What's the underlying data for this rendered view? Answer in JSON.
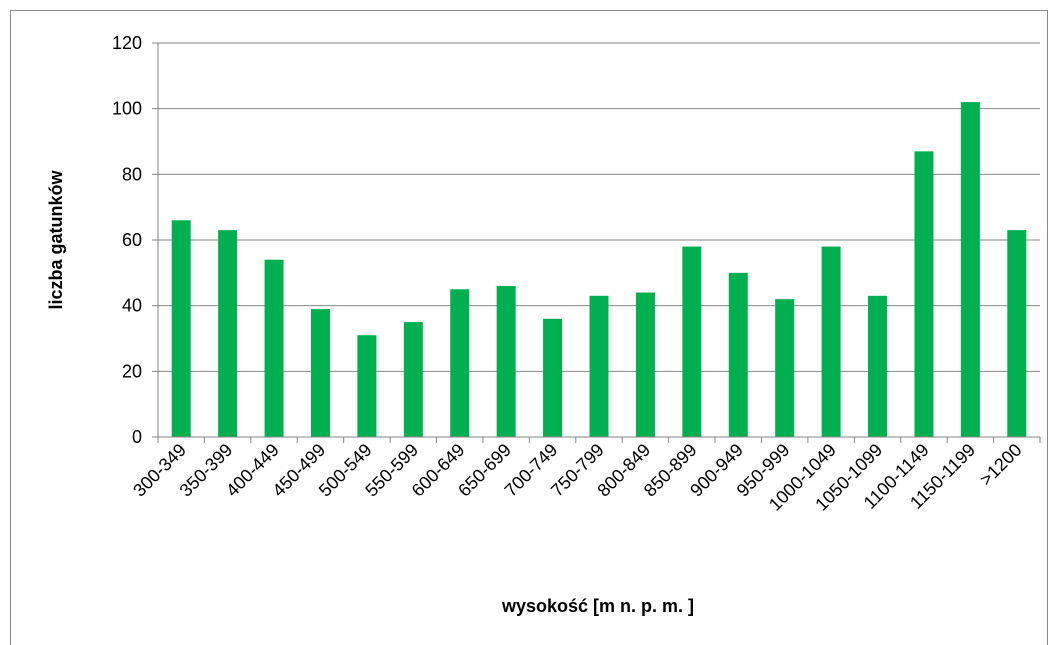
{
  "chart_data": {
    "type": "bar",
    "categories": [
      "300-349",
      "350-399",
      "400-449",
      "450-499",
      "500-549",
      "550-599",
      "600-649",
      "650-699",
      "700-749",
      "750-799",
      "800-849",
      "850-899",
      "900-949",
      "950-999",
      "1000-1049",
      "1050-1099",
      "1100-1149",
      "1150-1199",
      ">1200"
    ],
    "values": [
      66,
      63,
      54,
      39,
      31,
      35,
      45,
      46,
      36,
      43,
      44,
      58,
      50,
      42,
      58,
      43,
      87,
      102,
      63
    ],
    "color": "#00b050",
    "ylim": [
      0,
      120
    ],
    "yticks": [
      0,
      20,
      40,
      60,
      80,
      100,
      120
    ],
    "grid": true,
    "ylabel": "liczba gatunków",
    "xlabel": "wysokość [m n. p. m. ]"
  }
}
